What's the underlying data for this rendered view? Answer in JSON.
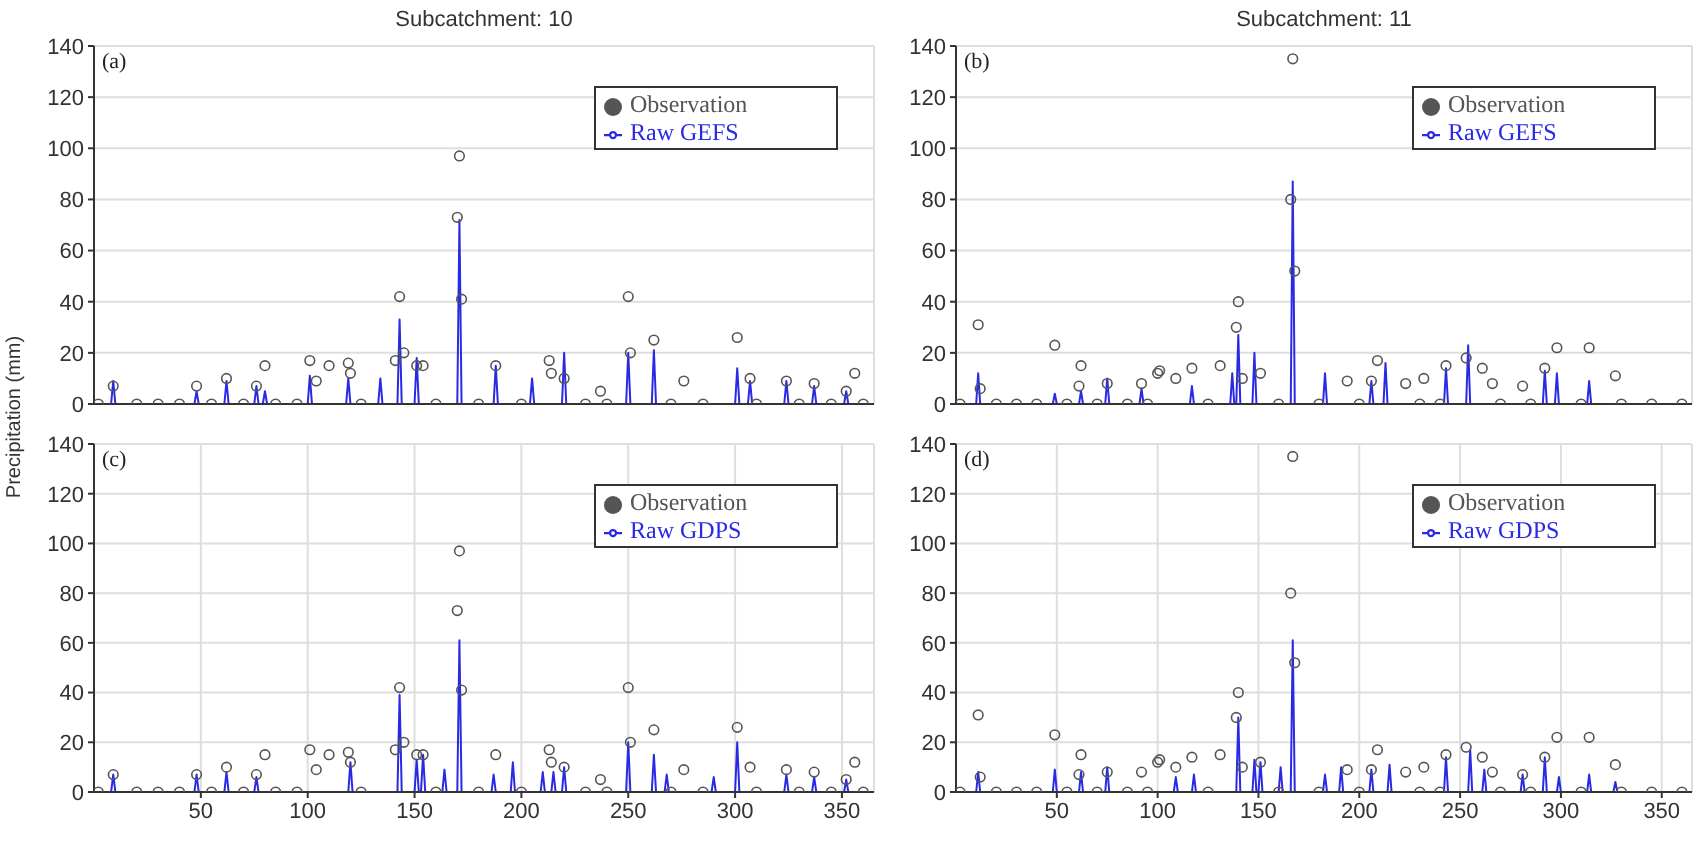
{
  "chart_data": [
    {
      "type": "line",
      "title": "Subcatchment: 10",
      "ylabel": "Precipitation (mm)",
      "xlim": [
        0,
        365
      ],
      "xticks": [
        50,
        100,
        150,
        200,
        250,
        300,
        350
      ],
      "ylim": [
        0,
        140
      ],
      "yticks": [
        0,
        20,
        40,
        60,
        80,
        100,
        120,
        140
      ],
      "grid": true,
      "legend": "top right",
      "tick_labels": "y",
      "annotations": [
        "(a)"
      ],
      "series": [
        {
          "name": "Observation",
          "type": "scatter",
          "marker": "circle",
          "color": "#555555",
          "x": [
            2,
            9,
            20,
            30,
            40,
            48,
            55,
            62,
            70,
            76,
            80,
            85,
            95,
            101,
            104,
            110,
            119,
            120,
            125,
            141,
            143,
            145,
            151,
            154,
            160,
            170,
            171,
            172,
            180,
            188,
            200,
            213,
            214,
            220,
            230,
            237,
            240,
            250,
            251,
            262,
            270,
            276,
            285,
            301,
            307,
            310,
            324,
            330,
            337,
            345,
            352,
            356,
            360
          ],
          "values": [
            0,
            7,
            0,
            0,
            0,
            7,
            0,
            10,
            0,
            7,
            15,
            0,
            0,
            17,
            9,
            15,
            16,
            12,
            0,
            17,
            42,
            20,
            15,
            15,
            0,
            73,
            97,
            41,
            0,
            15,
            0,
            17,
            12,
            10,
            0,
            5,
            0,
            42,
            20,
            25,
            0,
            9,
            0,
            26,
            10,
            0,
            9,
            0,
            8,
            0,
            5,
            12,
            0
          ]
        },
        {
          "name": "Raw GEFS",
          "type": "line",
          "color": "#2a2ae6",
          "x": [
            0,
            8,
            9,
            10,
            47,
            48,
            49,
            61,
            62,
            63,
            75,
            76,
            77,
            79,
            80,
            81,
            100,
            101,
            102,
            118,
            119,
            120,
            133,
            134,
            135,
            142,
            143,
            144,
            150,
            151,
            152,
            170,
            171,
            172,
            187,
            188,
            189,
            204,
            205,
            206,
            219,
            220,
            221,
            249,
            250,
            251,
            261,
            262,
            263,
            300,
            301,
            302,
            306,
            307,
            308,
            323,
            324,
            325,
            336,
            337,
            338,
            351,
            352,
            353,
            365
          ],
          "values": [
            0,
            0,
            9,
            0,
            0,
            5,
            0,
            0,
            9,
            0,
            0,
            7,
            0,
            0,
            5,
            0,
            0,
            11,
            0,
            0,
            10,
            0,
            0,
            10,
            0,
            0,
            33,
            0,
            0,
            18,
            0,
            0,
            72,
            0,
            0,
            15,
            0,
            0,
            10,
            0,
            0,
            20,
            0,
            0,
            20,
            0,
            0,
            21,
            0,
            0,
            14,
            0,
            0,
            9,
            0,
            0,
            9,
            0,
            0,
            7,
            0,
            0,
            5,
            0,
            0
          ]
        }
      ]
    },
    {
      "type": "line",
      "title": "Subcatchment: 11",
      "xlim": [
        0,
        365
      ],
      "xticks": [
        50,
        100,
        150,
        200,
        250,
        300,
        350
      ],
      "ylim": [
        0,
        140
      ],
      "yticks": [
        0,
        20,
        40,
        60,
        80,
        100,
        120,
        140
      ],
      "grid": true,
      "legend": "top right",
      "tick_labels": "y",
      "annotations": [
        "(b)"
      ],
      "series": [
        {
          "name": "Observation",
          "type": "scatter",
          "marker": "circle",
          "color": "#555555",
          "x": [
            2,
            11,
            12,
            20,
            30,
            40,
            49,
            55,
            61,
            62,
            70,
            75,
            85,
            92,
            95,
            100,
            101,
            109,
            117,
            125,
            131,
            139,
            140,
            142,
            151,
            160,
            166,
            167,
            168,
            180,
            194,
            200,
            206,
            209,
            223,
            230,
            232,
            240,
            243,
            253,
            261,
            266,
            270,
            281,
            285,
            292,
            298,
            310,
            314,
            327,
            330,
            345,
            360
          ],
          "values": [
            0,
            31,
            6,
            0,
            0,
            0,
            23,
            0,
            7,
            15,
            0,
            8,
            0,
            8,
            0,
            12,
            13,
            10,
            14,
            0,
            15,
            30,
            40,
            10,
            12,
            0,
            80,
            135,
            52,
            0,
            9,
            0,
            9,
            17,
            8,
            0,
            10,
            0,
            15,
            18,
            14,
            8,
            0,
            7,
            0,
            14,
            22,
            0,
            22,
            11,
            0,
            0,
            0
          ]
        },
        {
          "name": "Raw GEFS",
          "type": "line",
          "color": "#2a2ae6",
          "x": [
            0,
            10,
            11,
            12,
            48,
            49,
            50,
            61,
            62,
            63,
            74,
            75,
            76,
            91,
            92,
            93,
            116,
            117,
            118,
            136,
            137,
            138,
            139,
            140,
            141,
            147,
            148,
            149,
            166,
            167,
            168,
            182,
            183,
            184,
            205,
            206,
            207,
            212,
            213,
            214,
            242,
            243,
            244,
            253,
            254,
            255,
            291,
            292,
            293,
            297,
            298,
            299,
            313,
            314,
            315,
            365
          ],
          "values": [
            0,
            0,
            12,
            0,
            0,
            4,
            0,
            0,
            5,
            0,
            0,
            10,
            0,
            0,
            6,
            0,
            0,
            7,
            0,
            0,
            12,
            0,
            0,
            27,
            0,
            0,
            20,
            0,
            0,
            87,
            0,
            0,
            12,
            0,
            0,
            9,
            0,
            0,
            16,
            0,
            0,
            14,
            0,
            0,
            23,
            0,
            0,
            13,
            0,
            0,
            12,
            0,
            0,
            9,
            0,
            0
          ]
        }
      ]
    },
    {
      "type": "line",
      "xlim": [
        0,
        365
      ],
      "xticks": [
        50,
        100,
        150,
        200,
        250,
        300,
        350
      ],
      "ylim": [
        0,
        140
      ],
      "yticks": [
        0,
        20,
        40,
        60,
        80,
        100,
        120,
        140
      ],
      "grid": true,
      "legend": "top right",
      "annotations": [
        "(c)"
      ],
      "series": [
        {
          "name": "Observation",
          "type": "scatter",
          "marker": "circle",
          "color": "#555555",
          "x": [
            2,
            9,
            20,
            30,
            40,
            48,
            55,
            62,
            70,
            76,
            80,
            85,
            95,
            101,
            104,
            110,
            119,
            120,
            125,
            141,
            143,
            145,
            151,
            154,
            160,
            170,
            171,
            172,
            180,
            188,
            200,
            213,
            214,
            220,
            230,
            237,
            240,
            250,
            251,
            262,
            270,
            276,
            285,
            301,
            307,
            310,
            324,
            330,
            337,
            345,
            352,
            356,
            360
          ],
          "values": [
            0,
            7,
            0,
            0,
            0,
            7,
            0,
            10,
            0,
            7,
            15,
            0,
            0,
            17,
            9,
            15,
            16,
            12,
            0,
            17,
            42,
            20,
            15,
            15,
            0,
            73,
            97,
            41,
            0,
            15,
            0,
            17,
            12,
            10,
            0,
            5,
            0,
            42,
            20,
            25,
            0,
            9,
            0,
            26,
            10,
            0,
            9,
            0,
            8,
            0,
            5,
            12,
            0
          ]
        },
        {
          "name": "Raw GDPS",
          "type": "line",
          "color": "#2a2ae6",
          "x": [
            0,
            8,
            9,
            10,
            47,
            48,
            49,
            61,
            62,
            63,
            75,
            76,
            77,
            119,
            120,
            121,
            142,
            143,
            144,
            150,
            151,
            152,
            153,
            154,
            155,
            163,
            164,
            165,
            170,
            171,
            172,
            186,
            187,
            188,
            195,
            196,
            197,
            209,
            210,
            211,
            214,
            215,
            216,
            219,
            220,
            221,
            249,
            250,
            251,
            261,
            262,
            263,
            267,
            268,
            269,
            289,
            290,
            291,
            300,
            301,
            302,
            323,
            324,
            325,
            336,
            337,
            338,
            351,
            352,
            353,
            365
          ],
          "values": [
            0,
            0,
            7,
            0,
            0,
            7,
            0,
            0,
            8,
            0,
            0,
            6,
            0,
            0,
            12,
            0,
            0,
            39,
            0,
            0,
            13,
            0,
            0,
            15,
            0,
            0,
            9,
            0,
            0,
            61,
            0,
            0,
            7,
            0,
            0,
            12,
            0,
            0,
            8,
            0,
            0,
            8,
            0,
            0,
            10,
            0,
            0,
            20,
            0,
            0,
            15,
            0,
            0,
            7,
            0,
            0,
            6,
            0,
            0,
            20,
            0,
            0,
            7,
            0,
            0,
            6,
            0,
            0,
            5,
            0,
            0
          ]
        }
      ]
    },
    {
      "type": "line",
      "xlim": [
        0,
        365
      ],
      "xticks": [
        50,
        100,
        150,
        200,
        250,
        300,
        350
      ],
      "ylim": [
        0,
        140
      ],
      "yticks": [
        0,
        20,
        40,
        60,
        80,
        100,
        120,
        140
      ],
      "grid": true,
      "legend": "top right",
      "annotations": [
        "(d)"
      ],
      "series": [
        {
          "name": "Observation",
          "type": "scatter",
          "marker": "circle",
          "color": "#555555",
          "x": [
            2,
            11,
            12,
            20,
            30,
            40,
            49,
            55,
            61,
            62,
            70,
            75,
            85,
            92,
            95,
            100,
            101,
            109,
            117,
            125,
            131,
            139,
            140,
            142,
            151,
            160,
            166,
            167,
            168,
            180,
            194,
            200,
            206,
            209,
            223,
            230,
            232,
            240,
            243,
            253,
            261,
            266,
            270,
            281,
            285,
            292,
            298,
            310,
            314,
            327,
            330,
            345,
            360
          ],
          "values": [
            0,
            31,
            6,
            0,
            0,
            0,
            23,
            0,
            7,
            15,
            0,
            8,
            0,
            8,
            0,
            12,
            13,
            10,
            14,
            0,
            15,
            30,
            40,
            10,
            12,
            0,
            80,
            135,
            52,
            0,
            9,
            0,
            9,
            17,
            8,
            0,
            10,
            0,
            15,
            18,
            14,
            8,
            0,
            7,
            0,
            14,
            22,
            0,
            22,
            11,
            0,
            0,
            0
          ]
        },
        {
          "name": "Raw GDPS",
          "type": "line",
          "color": "#2a2ae6",
          "x": [
            0,
            10,
            11,
            12,
            48,
            49,
            50,
            61,
            62,
            63,
            74,
            75,
            76,
            108,
            109,
            110,
            117,
            118,
            119,
            139,
            140,
            141,
            147,
            148,
            149,
            150,
            151,
            152,
            160,
            161,
            162,
            166,
            167,
            168,
            182,
            183,
            184,
            190,
            191,
            192,
            205,
            206,
            207,
            214,
            215,
            216,
            242,
            243,
            244,
            254,
            255,
            256,
            261,
            262,
            263,
            280,
            281,
            282,
            291,
            292,
            293,
            298,
            299,
            300,
            313,
            314,
            315,
            326,
            327,
            328,
            365
          ],
          "values": [
            0,
            0,
            8,
            0,
            0,
            9,
            0,
            0,
            8,
            0,
            0,
            10,
            0,
            0,
            6,
            0,
            0,
            7,
            0,
            0,
            30,
            0,
            0,
            13,
            0,
            0,
            12,
            0,
            0,
            10,
            0,
            0,
            61,
            0,
            0,
            7,
            0,
            0,
            10,
            0,
            0,
            9,
            0,
            0,
            11,
            0,
            0,
            14,
            0,
            0,
            17,
            0,
            0,
            9,
            0,
            0,
            7,
            0,
            0,
            14,
            0,
            0,
            6,
            0,
            0,
            7,
            0,
            0,
            4,
            0,
            0
          ]
        }
      ]
    }
  ]
}
